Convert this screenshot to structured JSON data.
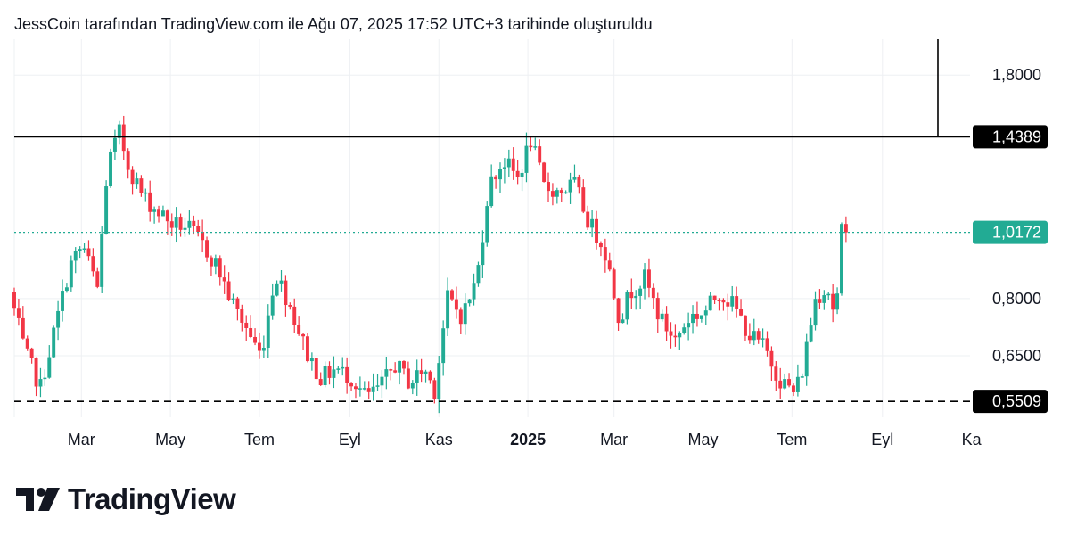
{
  "caption": "JessCoin tarafından TradingView.com ile Ağu 07, 2025 17:52 UTC+3 tarihinde oluşturuldu",
  "brand": {
    "name": "TradingView",
    "logo_icon": "tradingview-logo-icon"
  },
  "colors": {
    "up": "#22ab94",
    "down": "#f23645",
    "text": "#131722",
    "grid": "#eef0f3",
    "badge_dark": "#000000",
    "badge_current": "#22ab94"
  },
  "chart_data": {
    "type": "candlestick",
    "title": "",
    "xlabel": "",
    "ylabel": "",
    "y_scale": "log",
    "ylim": [
      0.52,
      2.05
    ],
    "xlim": [
      "2024-01-15",
      "2025-10-31"
    ],
    "grid": true,
    "y_ticks": [
      {
        "value": 1.8,
        "label": "1,8000"
      },
      {
        "value": 0.8,
        "label": "0,8000"
      },
      {
        "value": 0.65,
        "label": "0,6500"
      }
    ],
    "x_ticks": [
      {
        "date": "2024-03-01",
        "label": "Mar",
        "bold": false
      },
      {
        "date": "2024-05-01",
        "label": "May",
        "bold": false
      },
      {
        "date": "2024-07-01",
        "label": "Tem",
        "bold": false
      },
      {
        "date": "2024-09-01",
        "label": "Eyl",
        "bold": false
      },
      {
        "date": "2024-11-01",
        "label": "Kas",
        "bold": false
      },
      {
        "date": "2025-01-01",
        "label": "2025",
        "bold": true
      },
      {
        "date": "2025-03-01",
        "label": "Mar",
        "bold": false
      },
      {
        "date": "2025-05-01",
        "label": "May",
        "bold": false
      },
      {
        "date": "2025-07-01",
        "label": "Tem",
        "bold": false
      },
      {
        "date": "2025-09-01",
        "label": "Eyl",
        "bold": false
      },
      {
        "date": "2025-11-01",
        "label": "Ka",
        "bold": false
      }
    ],
    "levels": [
      {
        "name": "resistance",
        "value": 1.4389,
        "label": "1,4389",
        "style": "solid",
        "color": "#000000"
      },
      {
        "name": "current-price",
        "value": 1.0172,
        "label": "1,0172",
        "style": "dotted",
        "color": "#22ab94"
      },
      {
        "name": "support",
        "value": 0.5509,
        "label": "0,5509",
        "style": "dashed",
        "color": "#000000"
      }
    ],
    "vertical_marker": {
      "date": "2025-10-09",
      "from_value": 2.05,
      "to_value": 1.4389
    },
    "anchors": [
      [
        "2024-01-15",
        0.82
      ],
      [
        "2024-01-25",
        0.66
      ],
      [
        "2024-02-05",
        0.58
      ],
      [
        "2024-02-15",
        0.72
      ],
      [
        "2024-02-25",
        0.9
      ],
      [
        "2024-03-05",
        0.97
      ],
      [
        "2024-03-15",
        0.83
      ],
      [
        "2024-03-22",
        1.3
      ],
      [
        "2024-03-30",
        1.46
      ],
      [
        "2024-04-05",
        1.3
      ],
      [
        "2024-04-15",
        1.16
      ],
      [
        "2024-04-25",
        1.1
      ],
      [
        "2024-05-05",
        1.05
      ],
      [
        "2024-05-15",
        1.04
      ],
      [
        "2024-05-25",
        0.98
      ],
      [
        "2024-06-05",
        0.9
      ],
      [
        "2024-06-15",
        0.79
      ],
      [
        "2024-06-25",
        0.72
      ],
      [
        "2024-07-05",
        0.65
      ],
      [
        "2024-07-15",
        0.88
      ],
      [
        "2024-07-25",
        0.78
      ],
      [
        "2024-08-05",
        0.66
      ],
      [
        "2024-08-15",
        0.6
      ],
      [
        "2024-08-25",
        0.62
      ],
      [
        "2024-09-05",
        0.6
      ],
      [
        "2024-09-15",
        0.56
      ],
      [
        "2024-09-25",
        0.58
      ],
      [
        "2024-10-05",
        0.63
      ],
      [
        "2024-10-15",
        0.59
      ],
      [
        "2024-10-25",
        0.62
      ],
      [
        "2024-11-01",
        0.575
      ],
      [
        "2024-11-10",
        0.8
      ],
      [
        "2024-11-20",
        0.75
      ],
      [
        "2024-11-30",
        0.86
      ],
      [
        "2024-12-08",
        1.2
      ],
      [
        "2024-12-18",
        1.32
      ],
      [
        "2024-12-28",
        1.24
      ],
      [
        "2025-01-06",
        1.42
      ],
      [
        "2025-01-15",
        1.2
      ],
      [
        "2025-01-25",
        1.18
      ],
      [
        "2025-02-05",
        1.21
      ],
      [
        "2025-02-15",
        1.05
      ],
      [
        "2025-02-25",
        0.97
      ],
      [
        "2025-03-08",
        0.74
      ],
      [
        "2025-03-15",
        0.82
      ],
      [
        "2025-03-25",
        0.86
      ],
      [
        "2025-04-05",
        0.74
      ],
      [
        "2025-04-15",
        0.69
      ],
      [
        "2025-04-25",
        0.75
      ],
      [
        "2025-05-05",
        0.76
      ],
      [
        "2025-05-15",
        0.82
      ],
      [
        "2025-05-25",
        0.78
      ],
      [
        "2025-06-05",
        0.7
      ],
      [
        "2025-06-15",
        0.67
      ],
      [
        "2025-06-25",
        0.6
      ],
      [
        "2025-07-05",
        0.57
      ],
      [
        "2025-07-10",
        0.6
      ],
      [
        "2025-07-20",
        0.8
      ],
      [
        "2025-07-28",
        0.84
      ],
      [
        "2025-08-03",
        0.745
      ],
      [
        "2025-08-07",
        1.0172
      ]
    ]
  }
}
